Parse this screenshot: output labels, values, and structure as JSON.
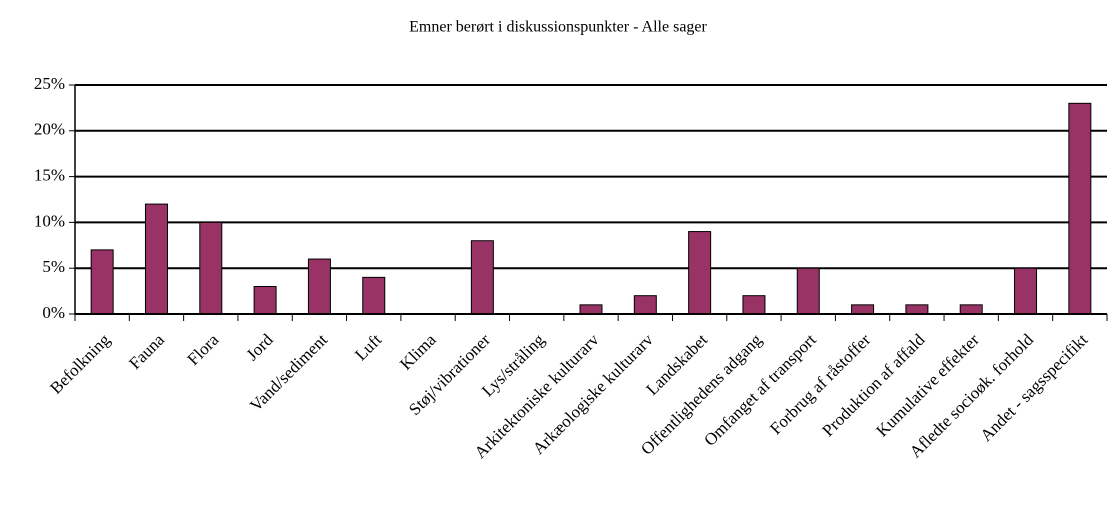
{
  "chart_data": {
    "type": "bar",
    "title": "Emner berørt i diskussionspunkter - Alle sager",
    "categories": [
      "Befolkning",
      "Fauna",
      "Flora",
      "Jord",
      "Vand/sediment",
      "Luft",
      "Klima",
      "Støj/vibrationer",
      "Lys/stråling",
      "Arkitektoniske kulturarv",
      "Arkæologiske kulturarv",
      "Landskabet",
      "Offentlighedens adgang",
      "Omfanget af transport",
      "Forbrug af råstoffer",
      "Produktion af affald",
      "Kumulative effekter",
      "Afledte socioøk. forhold",
      "Andet - sagsspecifikt"
    ],
    "values": [
      7,
      12,
      10,
      3,
      6,
      4,
      0,
      8,
      0,
      1,
      2,
      9,
      2,
      5,
      1,
      1,
      1,
      5,
      23
    ],
    "color": "#993366",
    "ylim": [
      0,
      25
    ],
    "yticks": [
      {
        "value": 0,
        "label": "0%"
      },
      {
        "value": 5,
        "label": "5%"
      },
      {
        "value": 10,
        "label": "10%"
      },
      {
        "value": 15,
        "label": "15%"
      },
      {
        "value": 20,
        "label": "20%"
      },
      {
        "value": 25,
        "label": "25%"
      }
    ],
    "grid": true
  }
}
